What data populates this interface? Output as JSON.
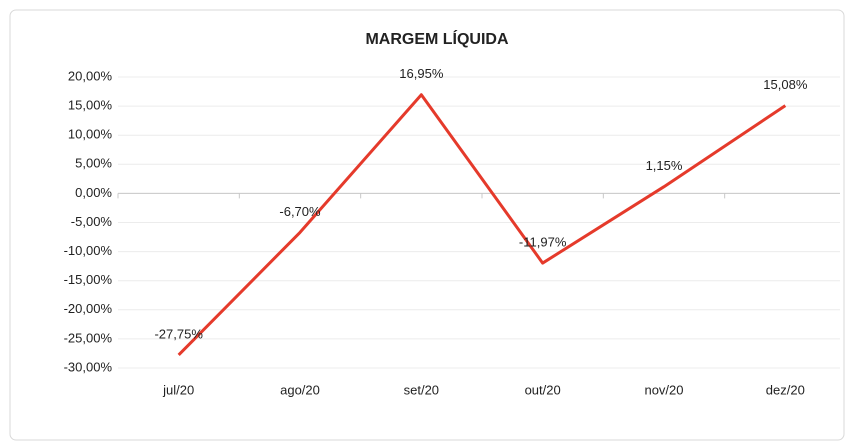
{
  "chart_data": {
    "type": "line",
    "title": "MARGEM LÍQUIDA",
    "categories": [
      "jul/20",
      "ago/20",
      "set/20",
      "out/20",
      "nov/20",
      "dez/20"
    ],
    "series": [
      {
        "name": "MARGEM LÍQUIDA",
        "color": "#e53a2b",
        "values": [
          -27.75,
          -6.7,
          16.95,
          -11.97,
          1.15,
          15.08
        ],
        "value_labels": [
          "-27,75%",
          "-6,70%",
          "16,95%",
          "-11,97%",
          "1,15%",
          "15,08%"
        ]
      }
    ],
    "ylim": [
      -30,
      20
    ],
    "yticks": [
      {
        "value": -30,
        "label": "-30,00%"
      },
      {
        "value": -25,
        "label": "-25,00%"
      },
      {
        "value": -20,
        "label": "-20,00%"
      },
      {
        "value": -15,
        "label": "-15,00%"
      },
      {
        "value": -10,
        "label": "-10,00%"
      },
      {
        "value": -5,
        "label": "-5,00%"
      },
      {
        "value": 0,
        "label": "0,00%"
      },
      {
        "value": 5,
        "label": "5,00%"
      },
      {
        "value": 10,
        "label": "10,00%"
      },
      {
        "value": 15,
        "label": "15,00%"
      },
      {
        "value": 20,
        "label": "20,00%"
      }
    ],
    "grid": true
  }
}
